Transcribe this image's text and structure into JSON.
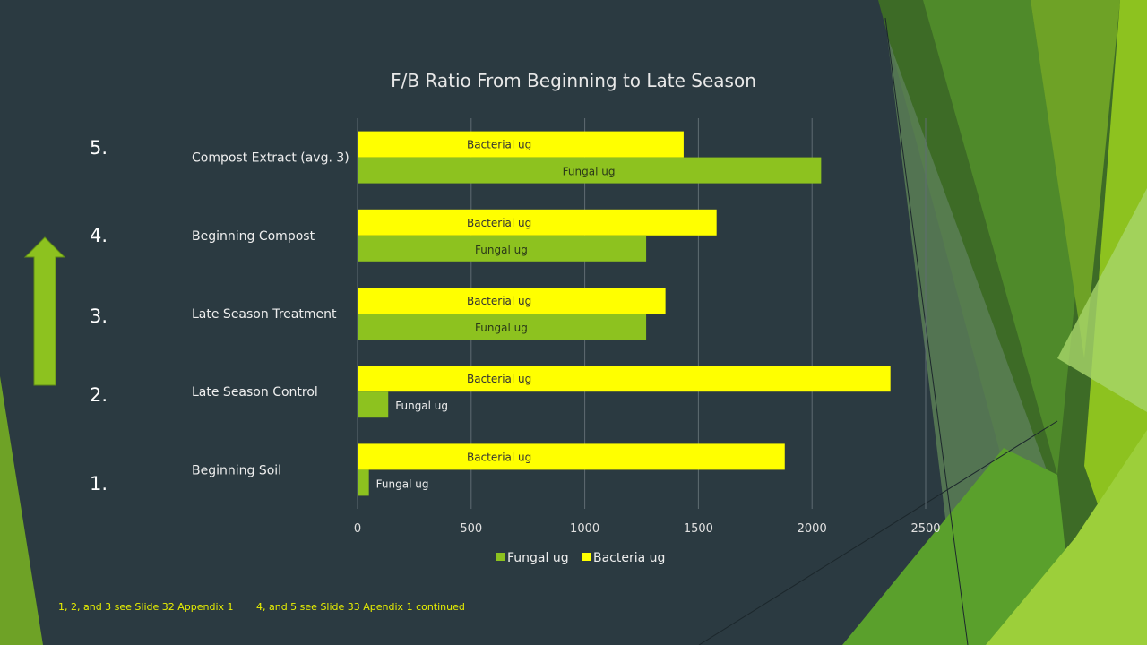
{
  "slide": {
    "numbers": [
      "5.",
      "4.",
      "3.",
      "2.",
      "1."
    ],
    "footnotes": [
      "1, 2, and 3 see  Slide 32 Appendix 1",
      "4, and 5 see Slide 33 Apendix 1 continued"
    ],
    "colors": {
      "background": "#2b3a41",
      "accent_green": "#8dc21f",
      "fungal": "#8dc21f",
      "bacteria": "#ffff00",
      "footnote": "#e9f000"
    },
    "icons": [
      "up-arrow-icon"
    ]
  },
  "chart_data": {
    "type": "bar",
    "orientation": "horizontal",
    "title": "F/B Ratio From Beginning to Late Season",
    "categories": [
      "Beginning Soil",
      "Late Season Control",
      "Late Season Treatment",
      "Beginning Compost",
      "Compost Extract (avg. 3)"
    ],
    "series": [
      {
        "name": "Fungal ug",
        "values": [
          50,
          135,
          1270,
          1270,
          2040
        ],
        "data_label": "Fungal ug"
      },
      {
        "name": "Bacteria ug",
        "values": [
          1880,
          2345,
          1355,
          1580,
          1435
        ],
        "data_label": "Bacterial ug"
      }
    ],
    "xlim": [
      0,
      2500
    ],
    "xticks": [
      0,
      500,
      1000,
      1500,
      2000,
      2500
    ],
    "grid": true,
    "legend": "bottom"
  }
}
